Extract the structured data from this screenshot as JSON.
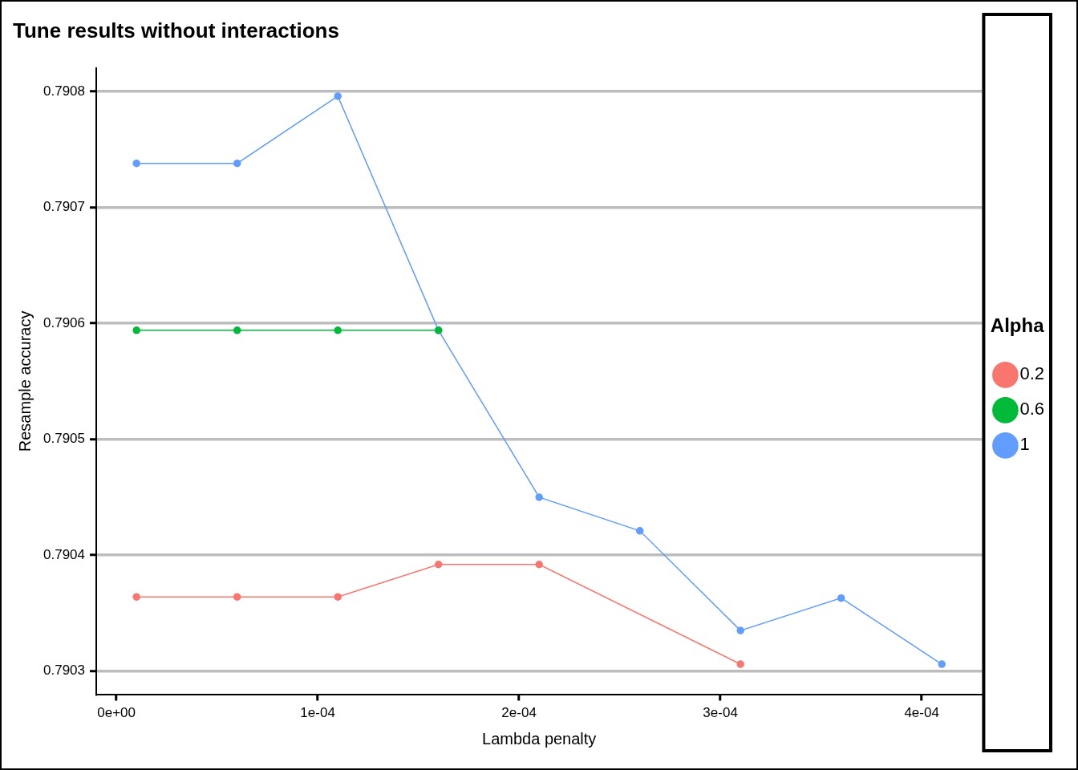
{
  "chart_data": {
    "type": "line",
    "title": "Tune results without interactions",
    "x_label": "Lambda penalty",
    "y_label": "Resample accuracy",
    "legend_title": "Alpha",
    "legend": "right",
    "grid": "y",
    "marker": "circle",
    "xlim": [
      -1e-05,
      0.00043
    ],
    "xticks": [
      {
        "value": 0,
        "label": "0e+00"
      },
      {
        "value": 0.0001,
        "label": "1e-04"
      },
      {
        "value": 0.0002,
        "label": "2e-04"
      },
      {
        "value": 0.0003,
        "label": "3e-04"
      },
      {
        "value": 0.0004,
        "label": "4e-04"
      }
    ],
    "ylim": [
      0.79028,
      0.79082
    ],
    "yticks": [
      0.7903,
      0.7904,
      0.7905,
      0.7906,
      0.7907,
      0.7908
    ],
    "series": [
      {
        "name": "0.2",
        "color": "#F8766D",
        "x": [
          1e-05,
          6e-05,
          0.00011,
          0.00016,
          0.00021,
          0.00031
        ],
        "values": [
          0.790364,
          0.790364,
          0.790364,
          0.790392,
          0.790392,
          0.790306
        ]
      },
      {
        "name": "0.6",
        "color": "#00BA38",
        "x": [
          1e-05,
          6e-05,
          0.00011,
          0.00016
        ],
        "values": [
          0.790594,
          0.790594,
          0.790594,
          0.790594
        ]
      },
      {
        "name": "1",
        "color": "#619CFF",
        "x": [
          1e-05,
          6e-05,
          0.00011,
          0.00016,
          0.00021,
          0.00026,
          0.00031,
          0.00036,
          0.00041
        ],
        "values": [
          0.790738,
          0.790738,
          0.790796,
          0.790594,
          0.79045,
          0.790421,
          0.790335,
          0.790363,
          0.790306
        ]
      }
    ]
  }
}
